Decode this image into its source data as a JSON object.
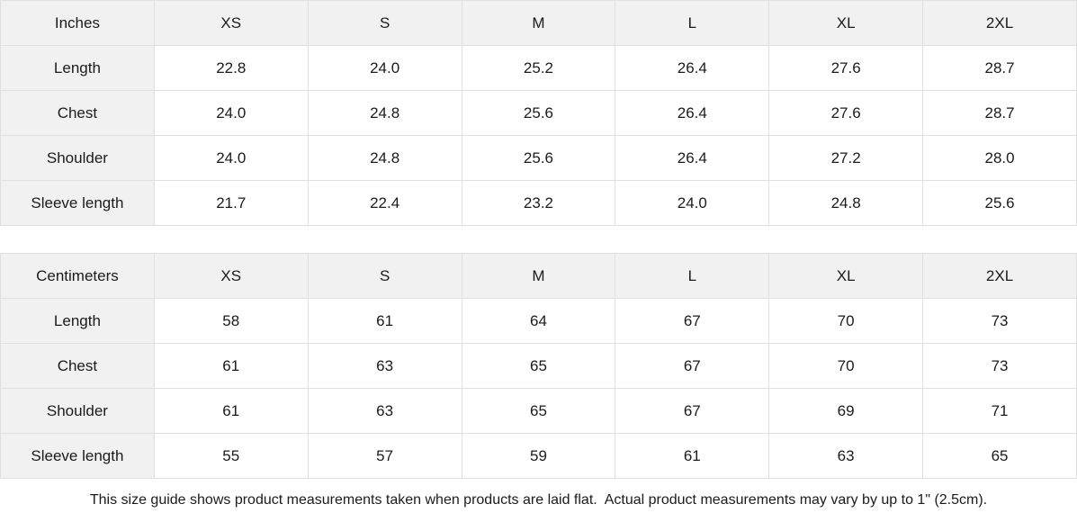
{
  "colors": {
    "header_bg": "#f1f1f1",
    "border": "#e0e0e0",
    "text": "#1b1b1b",
    "cell_bg": "#ffffff"
  },
  "chart_data": [
    {
      "type": "table",
      "unit": "Inches",
      "columns": [
        "Inches",
        "XS",
        "S",
        "M",
        "L",
        "XL",
        "2XL"
      ],
      "rows": [
        [
          "Length",
          "22.8",
          "24.0",
          "25.2",
          "26.4",
          "27.6",
          "28.7"
        ],
        [
          "Chest",
          "24.0",
          "24.8",
          "25.6",
          "26.4",
          "27.6",
          "28.7"
        ],
        [
          "Shoulder",
          "24.0",
          "24.8",
          "25.6",
          "26.4",
          "27.2",
          "28.0"
        ],
        [
          "Sleeve length",
          "21.7",
          "22.4",
          "23.2",
          "24.0",
          "24.8",
          "25.6"
        ]
      ]
    },
    {
      "type": "table",
      "unit": "Centimeters",
      "columns": [
        "Centimeters",
        "XS",
        "S",
        "M",
        "L",
        "XL",
        "2XL"
      ],
      "rows": [
        [
          "Length",
          "58",
          "61",
          "64",
          "67",
          "70",
          "73"
        ],
        [
          "Chest",
          "61",
          "63",
          "65",
          "67",
          "70",
          "73"
        ],
        [
          "Shoulder",
          "61",
          "63",
          "65",
          "67",
          "69",
          "71"
        ],
        [
          "Sleeve length",
          "55",
          "57",
          "59",
          "61",
          "63",
          "65"
        ]
      ]
    }
  ],
  "footer_note": "This size guide shows product measurements taken when products are laid flat.  Actual product measurements may vary by up to 1\" (2.5cm)."
}
